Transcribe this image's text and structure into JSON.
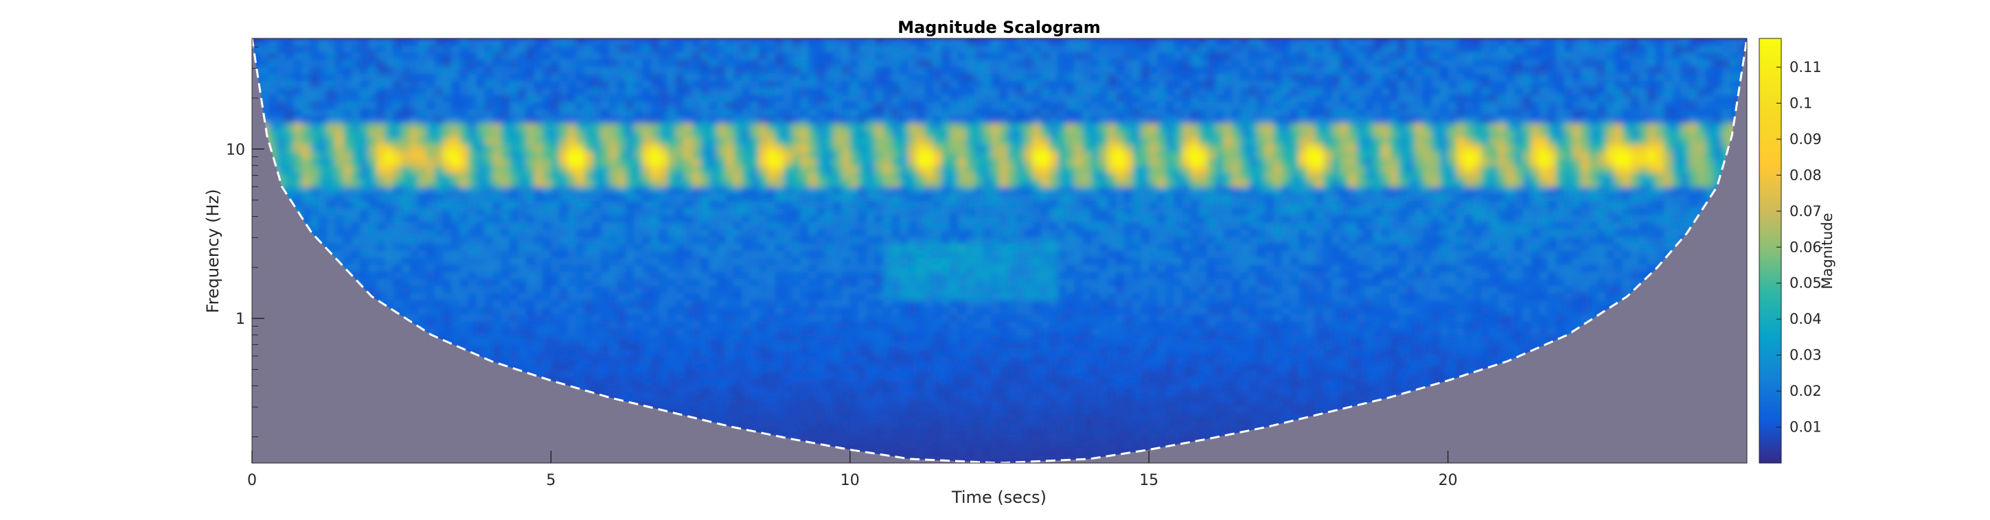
{
  "chart_data": {
    "type": "heatmap",
    "title": "Magnitude Scalogram",
    "xlabel": "Time (secs)",
    "ylabel": "Frequency (Hz)",
    "xlim": [
      0,
      25
    ],
    "ylim": [
      0.14,
      45
    ],
    "yscale": "log",
    "x_ticks": [
      0,
      5,
      10,
      15,
      20
    ],
    "x_tick_labels": [
      "0",
      "5",
      "10",
      "15",
      "20"
    ],
    "y_ticks": [
      1,
      10
    ],
    "y_tick_labels": [
      "1",
      "10"
    ],
    "colorbar": {
      "label": "Magnitude",
      "range": [
        0,
        0.118
      ],
      "ticks": [
        0.01,
        0.02,
        0.03,
        0.04,
        0.05,
        0.06,
        0.07,
        0.08,
        0.09,
        0.1,
        0.11
      ],
      "tick_labels": [
        "0.01",
        "0.02",
        "0.03",
        "0.04",
        "0.05",
        "0.06",
        "0.07",
        "0.08",
        "0.09",
        "0.1",
        "0.11"
      ],
      "colormap": "parula"
    },
    "cone_of_influence": {
      "style": "dashed",
      "color": "#ffffff",
      "shaded_color": "#7b7690",
      "time": [
        0,
        0.25,
        0.5,
        1,
        2,
        3,
        4,
        5,
        6,
        7,
        8,
        9,
        10,
        11,
        12.5,
        14,
        15,
        16,
        17,
        18,
        19,
        20,
        21,
        22,
        23,
        23.5,
        24,
        24.5,
        24.75,
        25
      ],
      "frequency": [
        45,
        12,
        6,
        3.2,
        1.35,
        0.8,
        0.56,
        0.43,
        0.34,
        0.28,
        0.23,
        0.195,
        0.168,
        0.148,
        0.135,
        0.148,
        0.168,
        0.195,
        0.23,
        0.28,
        0.34,
        0.43,
        0.56,
        0.8,
        1.35,
        2.0,
        3.2,
        6,
        12,
        45
      ]
    },
    "energy_bands": [
      {
        "frequency_range": [
          6,
          14
        ],
        "magnitude": "0.06-0.11",
        "description_time_peaks": [
          2.4,
          3.3,
          5.4,
          6.8,
          8.8,
          11.3,
          13.2,
          14.5,
          15.8,
          17.8,
          20.4,
          21.6,
          22.8,
          23.3
        ]
      },
      {
        "frequency_range": [
          14,
          45
        ],
        "magnitude": "0.01-0.03"
      },
      {
        "frequency_range": [
          0.14,
          6
        ],
        "magnitude": "0.005-0.03"
      }
    ]
  }
}
